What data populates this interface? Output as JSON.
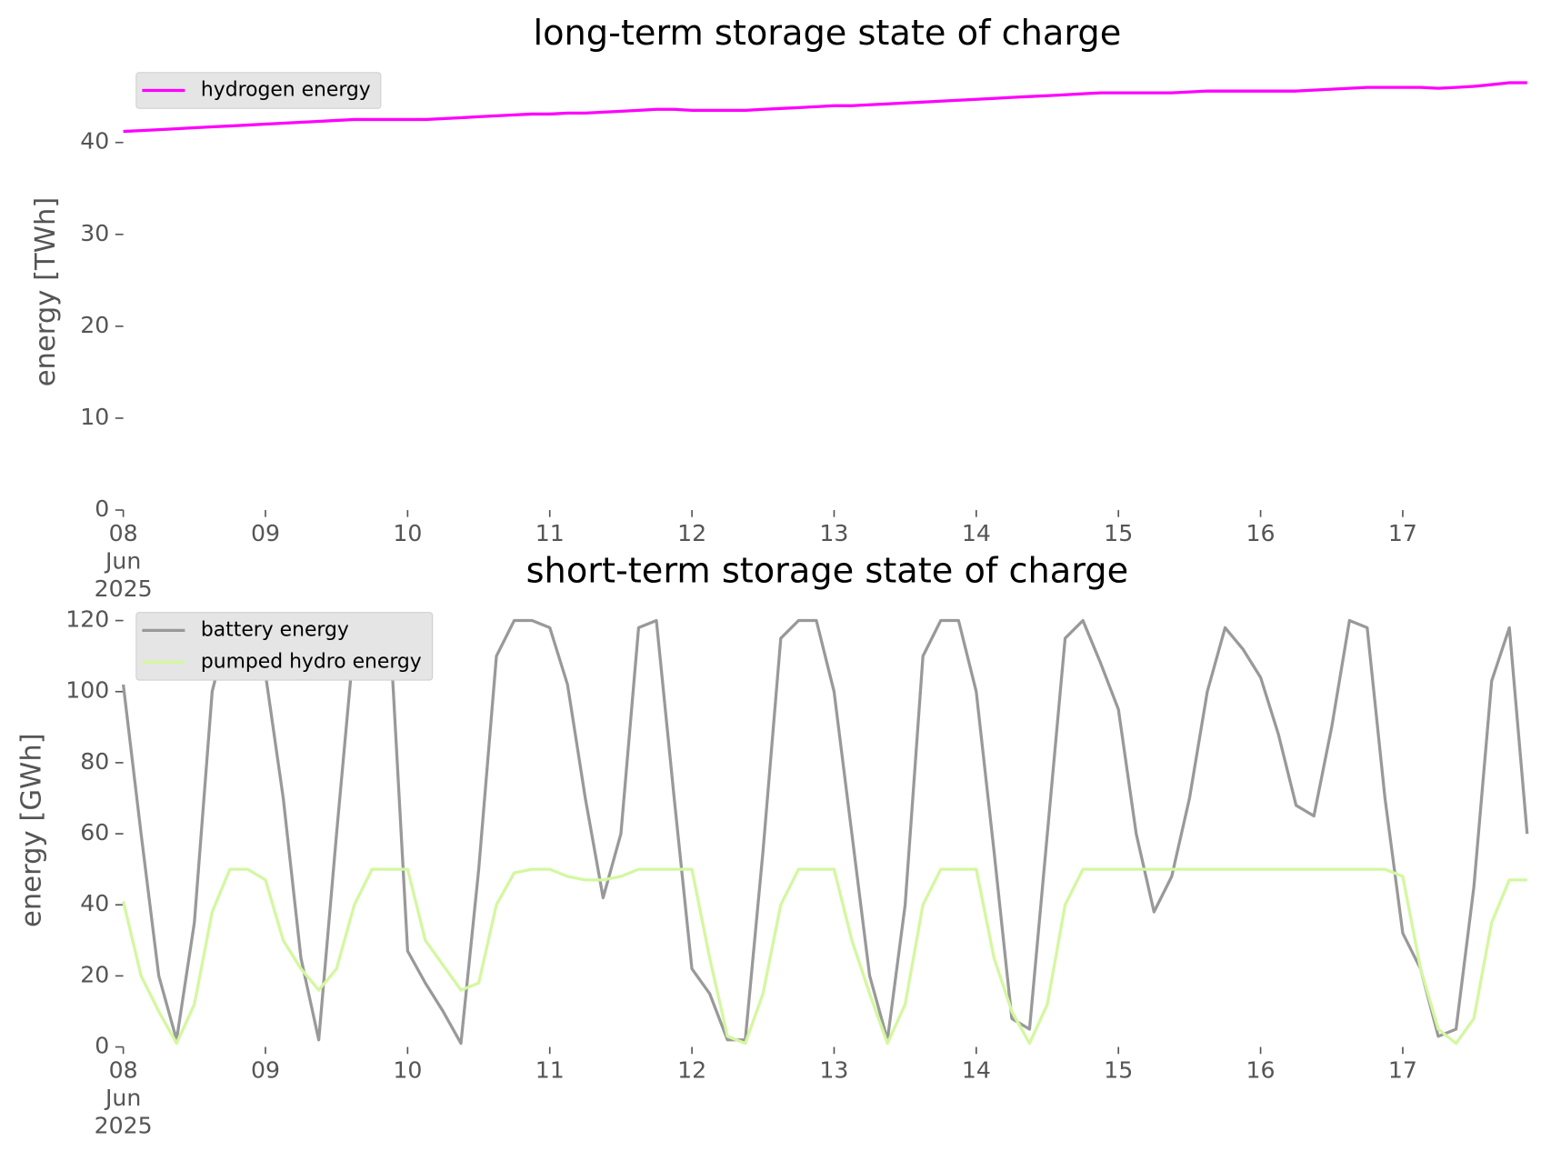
{
  "chart_data": [
    {
      "type": "line",
      "title": "long-term storage state of charge",
      "y_label": "energy [TWh]",
      "x": [
        "2025-06-08 00:00",
        "2025-06-08 03:00",
        "2025-06-08 06:00",
        "2025-06-08 09:00",
        "2025-06-08 12:00",
        "2025-06-08 15:00",
        "2025-06-08 18:00",
        "2025-06-08 21:00",
        "2025-06-09 00:00",
        "2025-06-09 03:00",
        "2025-06-09 06:00",
        "2025-06-09 09:00",
        "2025-06-09 12:00",
        "2025-06-09 15:00",
        "2025-06-09 18:00",
        "2025-06-09 21:00",
        "2025-06-10 00:00",
        "2025-06-10 03:00",
        "2025-06-10 06:00",
        "2025-06-10 09:00",
        "2025-06-10 12:00",
        "2025-06-10 15:00",
        "2025-06-10 18:00",
        "2025-06-10 21:00",
        "2025-06-11 00:00",
        "2025-06-11 03:00",
        "2025-06-11 06:00",
        "2025-06-11 09:00",
        "2025-06-11 12:00",
        "2025-06-11 15:00",
        "2025-06-11 18:00",
        "2025-06-11 21:00",
        "2025-06-12 00:00",
        "2025-06-12 03:00",
        "2025-06-12 06:00",
        "2025-06-12 09:00",
        "2025-06-12 12:00",
        "2025-06-12 15:00",
        "2025-06-12 18:00",
        "2025-06-12 21:00",
        "2025-06-13 00:00",
        "2025-06-13 03:00",
        "2025-06-13 06:00",
        "2025-06-13 09:00",
        "2025-06-13 12:00",
        "2025-06-13 15:00",
        "2025-06-13 18:00",
        "2025-06-13 21:00",
        "2025-06-14 00:00",
        "2025-06-14 03:00",
        "2025-06-14 06:00",
        "2025-06-14 09:00",
        "2025-06-14 12:00",
        "2025-06-14 15:00",
        "2025-06-14 18:00",
        "2025-06-14 21:00",
        "2025-06-15 00:00",
        "2025-06-15 03:00",
        "2025-06-15 06:00",
        "2025-06-15 09:00",
        "2025-06-15 12:00",
        "2025-06-15 15:00",
        "2025-06-15 18:00",
        "2025-06-15 21:00",
        "2025-06-16 00:00",
        "2025-06-16 03:00",
        "2025-06-16 06:00",
        "2025-06-16 09:00",
        "2025-06-16 12:00",
        "2025-06-16 15:00",
        "2025-06-16 18:00",
        "2025-06-16 21:00",
        "2025-06-17 00:00",
        "2025-06-17 03:00",
        "2025-06-17 06:00",
        "2025-06-17 09:00",
        "2025-06-17 12:00",
        "2025-06-17 15:00",
        "2025-06-17 18:00",
        "2025-06-17 21:00"
      ],
      "xlim": [
        "2025-06-08 00:00",
        "2025-06-17 21:00"
      ],
      "xticks": [
        {
          "value": "2025-06-08",
          "label": "08\nJun\n2025"
        },
        {
          "value": "2025-06-09",
          "label": "09"
        },
        {
          "value": "2025-06-10",
          "label": "10"
        },
        {
          "value": "2025-06-11",
          "label": "11"
        },
        {
          "value": "2025-06-12",
          "label": "12"
        },
        {
          "value": "2025-06-13",
          "label": "13"
        },
        {
          "value": "2025-06-14",
          "label": "14"
        },
        {
          "value": "2025-06-15",
          "label": "15"
        },
        {
          "value": "2025-06-16",
          "label": "16"
        },
        {
          "value": "2025-06-17",
          "label": "17"
        }
      ],
      "ylim": [
        0,
        47.5
      ],
      "yticks": [
        0,
        10,
        20,
        30,
        40
      ],
      "legend": "upper left",
      "series": [
        {
          "name": "hydrogen energy",
          "color": "#ff00ff",
          "values": [
            41.2,
            41.3,
            41.4,
            41.5,
            41.6,
            41.7,
            41.8,
            41.9,
            42.0,
            42.1,
            42.2,
            42.3,
            42.4,
            42.5,
            42.5,
            42.5,
            42.5,
            42.5,
            42.6,
            42.7,
            42.8,
            42.9,
            43.0,
            43.1,
            43.1,
            43.2,
            43.2,
            43.3,
            43.4,
            43.5,
            43.6,
            43.6,
            43.5,
            43.5,
            43.5,
            43.5,
            43.6,
            43.7,
            43.8,
            43.9,
            44.0,
            44.0,
            44.1,
            44.2,
            44.3,
            44.4,
            44.5,
            44.6,
            44.7,
            44.8,
            44.9,
            45.0,
            45.1,
            45.2,
            45.3,
            45.4,
            45.4,
            45.4,
            45.4,
            45.4,
            45.5,
            45.6,
            45.6,
            45.6,
            45.6,
            45.6,
            45.6,
            45.7,
            45.8,
            45.9,
            46.0,
            46.0,
            46.0,
            46.0,
            45.9,
            46.0,
            46.1,
            46.3,
            46.5,
            46.5
          ]
        }
      ]
    },
    {
      "type": "line",
      "title": "short-term storage state of charge",
      "y_label": "energy [GWh]",
      "x": [
        "2025-06-08 00:00",
        "2025-06-08 03:00",
        "2025-06-08 06:00",
        "2025-06-08 09:00",
        "2025-06-08 12:00",
        "2025-06-08 15:00",
        "2025-06-08 18:00",
        "2025-06-08 21:00",
        "2025-06-09 00:00",
        "2025-06-09 03:00",
        "2025-06-09 06:00",
        "2025-06-09 09:00",
        "2025-06-09 12:00",
        "2025-06-09 15:00",
        "2025-06-09 18:00",
        "2025-06-09 21:00",
        "2025-06-10 00:00",
        "2025-06-10 03:00",
        "2025-06-10 06:00",
        "2025-06-10 09:00",
        "2025-06-10 12:00",
        "2025-06-10 15:00",
        "2025-06-10 18:00",
        "2025-06-10 21:00",
        "2025-06-11 00:00",
        "2025-06-11 03:00",
        "2025-06-11 06:00",
        "2025-06-11 09:00",
        "2025-06-11 12:00",
        "2025-06-11 15:00",
        "2025-06-11 18:00",
        "2025-06-11 21:00",
        "2025-06-12 00:00",
        "2025-06-12 03:00",
        "2025-06-12 06:00",
        "2025-06-12 09:00",
        "2025-06-12 12:00",
        "2025-06-12 15:00",
        "2025-06-12 18:00",
        "2025-06-12 21:00",
        "2025-06-13 00:00",
        "2025-06-13 03:00",
        "2025-06-13 06:00",
        "2025-06-13 09:00",
        "2025-06-13 12:00",
        "2025-06-13 15:00",
        "2025-06-13 18:00",
        "2025-06-13 21:00",
        "2025-06-14 00:00",
        "2025-06-14 03:00",
        "2025-06-14 06:00",
        "2025-06-14 09:00",
        "2025-06-14 12:00",
        "2025-06-14 15:00",
        "2025-06-14 18:00",
        "2025-06-14 21:00",
        "2025-06-15 00:00",
        "2025-06-15 03:00",
        "2025-06-15 06:00",
        "2025-06-15 09:00",
        "2025-06-15 12:00",
        "2025-06-15 15:00",
        "2025-06-15 18:00",
        "2025-06-15 21:00",
        "2025-06-16 00:00",
        "2025-06-16 03:00",
        "2025-06-16 06:00",
        "2025-06-16 09:00",
        "2025-06-16 12:00",
        "2025-06-16 15:00",
        "2025-06-16 18:00",
        "2025-06-16 21:00",
        "2025-06-17 00:00",
        "2025-06-17 03:00",
        "2025-06-17 06:00",
        "2025-06-17 09:00",
        "2025-06-17 12:00",
        "2025-06-17 15:00",
        "2025-06-17 18:00",
        "2025-06-17 21:00"
      ],
      "xlim": [
        "2025-06-08 00:00",
        "2025-06-17 21:00"
      ],
      "xticks": [
        {
          "value": "2025-06-08",
          "label": "08\nJun\n2025"
        },
        {
          "value": "2025-06-09",
          "label": "09"
        },
        {
          "value": "2025-06-10",
          "label": "10"
        },
        {
          "value": "2025-06-11",
          "label": "11"
        },
        {
          "value": "2025-06-12",
          "label": "12"
        },
        {
          "value": "2025-06-13",
          "label": "13"
        },
        {
          "value": "2025-06-14",
          "label": "14"
        },
        {
          "value": "2025-06-15",
          "label": "15"
        },
        {
          "value": "2025-06-16",
          "label": "16"
        },
        {
          "value": "2025-06-17",
          "label": "17"
        }
      ],
      "ylim": [
        0,
        122
      ],
      "yticks": [
        0,
        20,
        40,
        60,
        80,
        100,
        120
      ],
      "legend": "upper left",
      "series": [
        {
          "name": "battery energy",
          "color": "#999999",
          "values": [
            102,
            60,
            20,
            2,
            35,
            100,
            120,
            120,
            105,
            70,
            25,
            2,
            60,
            115,
            120,
            118,
            27,
            18,
            10,
            1,
            50,
            110,
            120,
            120,
            118,
            102,
            70,
            42,
            60,
            118,
            120,
            70,
            22,
            15,
            2,
            2,
            55,
            115,
            120,
            120,
            100,
            60,
            20,
            2,
            40,
            110,
            120,
            120,
            100,
            55,
            8,
            5,
            60,
            115,
            120,
            108,
            95,
            60,
            38,
            48,
            70,
            100,
            118,
            112,
            104,
            88,
            68,
            65,
            90,
            120,
            118,
            70,
            32,
            22,
            3,
            5,
            45,
            103,
            118,
            60
          ]
        },
        {
          "name": "pumped hydro energy",
          "color": "#d4f7a0",
          "values": [
            41,
            20,
            10,
            1,
            12,
            38,
            50,
            50,
            47,
            30,
            22,
            16,
            22,
            40,
            50,
            50,
            50,
            30,
            23,
            16,
            18,
            40,
            49,
            50,
            50,
            48,
            47,
            47,
            48,
            50,
            50,
            50,
            50,
            25,
            3,
            1,
            15,
            40,
            50,
            50,
            50,
            30,
            15,
            1,
            12,
            40,
            50,
            50,
            50,
            25,
            10,
            1,
            12,
            40,
            50,
            50,
            50,
            50,
            50,
            50,
            50,
            50,
            50,
            50,
            50,
            50,
            50,
            50,
            50,
            50,
            50,
            50,
            48,
            22,
            5,
            1,
            8,
            35,
            47,
            47
          ]
        }
      ]
    }
  ]
}
